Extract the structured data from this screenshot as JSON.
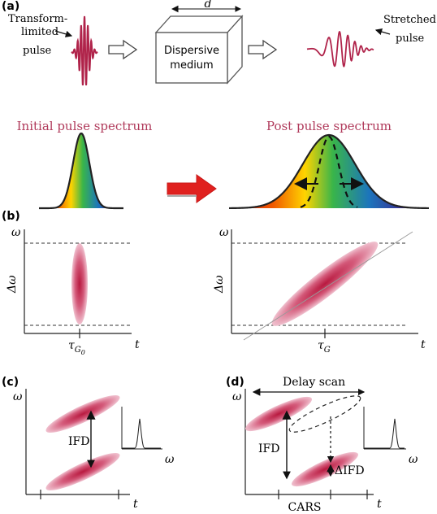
{
  "panels": {
    "a": "(a)",
    "b": "(b)",
    "c": "(c)",
    "d": "(d)"
  },
  "panel_a": {
    "transform_label_1": "Transform-",
    "transform_label_2": "limited",
    "transform_label_3": "pulse",
    "medium_label_1": "Dispersive",
    "medium_label_2": "medium",
    "length_label": "d",
    "stretched_label_1": "Stretched",
    "stretched_label_2": "pulse",
    "initial_spectrum": "Initial pulse spectrum",
    "post_spectrum": "Post pulse spectrum"
  },
  "panel_b": {
    "omega": "ω",
    "delta_omega": "Δω",
    "t": "t",
    "tau_g0_main": "τ",
    "tau_g0_sub": "G",
    "tau_g0_subsub": "0",
    "tau_g_main": "τ",
    "tau_g_sub": "G"
  },
  "panel_c": {
    "omega": "ω",
    "t": "t",
    "ifd": "IFD",
    "omega_inset": "ω"
  },
  "panel_d": {
    "omega": "ω",
    "t": "t",
    "delay_scan": "Delay scan",
    "ifd": "IFD",
    "delta_ifd": "ΔIFD",
    "cars": "CARS",
    "omega_inset": "ω"
  },
  "colors": {
    "pulse": "#b0234a",
    "title_pink": "#b03a5b",
    "arrow_red": "#e0201e",
    "ellipse": "#c0305a"
  }
}
